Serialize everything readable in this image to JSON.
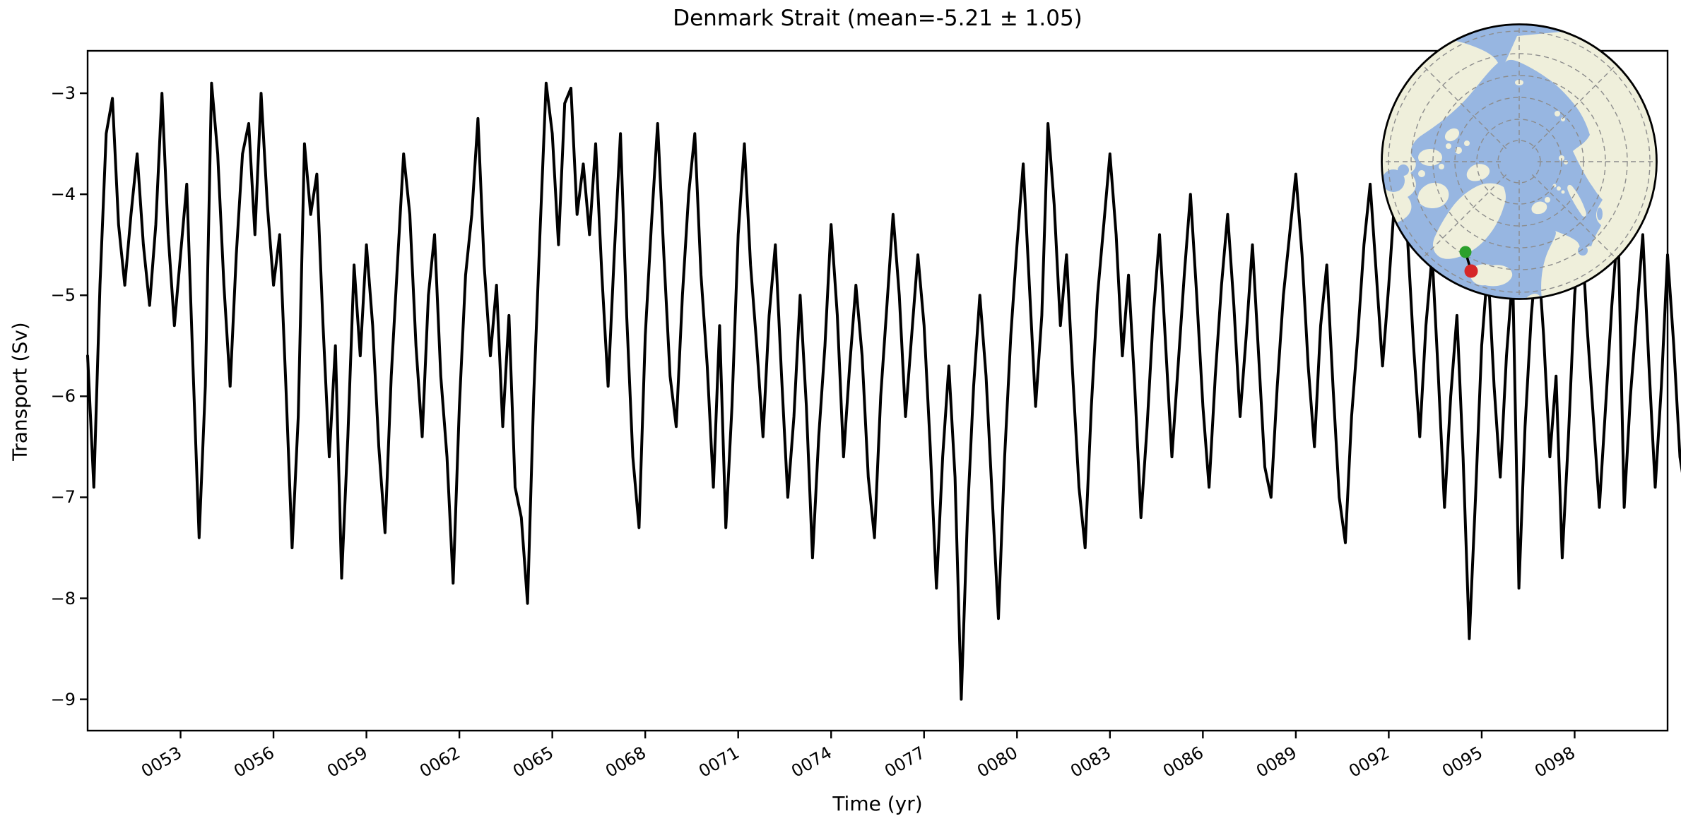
{
  "figure": {
    "title": "Denmark Strait (mean=-5.21 ± 1.05)",
    "xlabel": "Time (yr)",
    "ylabel": "Transport (Sv)"
  },
  "chart_data": {
    "type": "line",
    "title": "Denmark Strait (mean=-5.21 ± 1.05)",
    "xlabel": "Time (yr)",
    "ylabel": "Transport (Sv)",
    "grid": false,
    "legend": "none",
    "xlim": [
      50,
      101
    ],
    "ylim": [
      -9.31,
      -2.58
    ],
    "xticks": {
      "values": [
        53,
        56,
        59,
        62,
        65,
        68,
        71,
        74,
        77,
        80,
        83,
        86,
        89,
        92,
        95,
        98
      ],
      "labels": [
        "0053",
        "0056",
        "0059",
        "0062",
        "0065",
        "0068",
        "0071",
        "0074",
        "0077",
        "0080",
        "0083",
        "0086",
        "0089",
        "0092",
        "0095",
        "0098"
      ]
    },
    "yticks": {
      "values": [
        -3,
        -4,
        -5,
        -6,
        -7,
        -8,
        -9
      ],
      "labels": [
        "−3",
        "−4",
        "−5",
        "−6",
        "−7",
        "−8",
        "−9"
      ]
    },
    "stats": {
      "mean": -5.21,
      "std": 1.05,
      "units": "Sv"
    },
    "series": [
      {
        "name": "Denmark Strait transport",
        "color": "#000000",
        "line_width": 4,
        "x_start": 50.0,
        "x_step": 0.2,
        "values": [
          -5.6,
          -6.9,
          -4.9,
          -3.4,
          -3.05,
          -4.3,
          -4.9,
          -4.2,
          -3.6,
          -4.5,
          -5.1,
          -4.3,
          -3.0,
          -4.4,
          -5.3,
          -4.6,
          -3.9,
          -5.7,
          -7.4,
          -5.9,
          -2.9,
          -3.6,
          -4.9,
          -5.9,
          -4.6,
          -3.6,
          -3.3,
          -4.4,
          -3.0,
          -4.1,
          -4.9,
          -4.4,
          -5.9,
          -7.5,
          -6.2,
          -3.5,
          -4.2,
          -3.8,
          -5.3,
          -6.6,
          -5.5,
          -7.8,
          -6.4,
          -4.7,
          -5.6,
          -4.5,
          -5.3,
          -6.5,
          -7.35,
          -5.8,
          -4.7,
          -3.6,
          -4.2,
          -5.5,
          -6.4,
          -5.0,
          -4.4,
          -5.8,
          -6.6,
          -7.85,
          -6.1,
          -4.8,
          -4.2,
          -3.25,
          -4.7,
          -5.6,
          -4.9,
          -6.3,
          -5.2,
          -6.9,
          -7.2,
          -8.05,
          -6.0,
          -4.4,
          -2.9,
          -3.4,
          -4.5,
          -3.1,
          -2.95,
          -4.2,
          -3.7,
          -4.4,
          -3.5,
          -4.8,
          -5.9,
          -4.6,
          -3.4,
          -5.2,
          -6.6,
          -7.3,
          -5.4,
          -4.3,
          -3.3,
          -4.6,
          -5.8,
          -6.3,
          -5.0,
          -4.0,
          -3.4,
          -4.8,
          -5.7,
          -6.9,
          -5.3,
          -7.3,
          -6.1,
          -4.4,
          -3.5,
          -4.7,
          -5.5,
          -6.4,
          -5.2,
          -4.5,
          -5.8,
          -7.0,
          -6.2,
          -5.0,
          -6.1,
          -7.6,
          -6.4,
          -5.5,
          -4.3,
          -5.2,
          -6.6,
          -5.7,
          -4.9,
          -5.6,
          -6.8,
          -7.4,
          -6.0,
          -5.1,
          -4.2,
          -5.0,
          -6.2,
          -5.4,
          -4.6,
          -5.3,
          -6.5,
          -7.9,
          -6.6,
          -5.7,
          -6.8,
          -9.0,
          -7.2,
          -5.9,
          -5.0,
          -5.8,
          -7.0,
          -8.2,
          -6.6,
          -5.4,
          -4.5,
          -3.7,
          -4.9,
          -6.1,
          -5.2,
          -3.3,
          -4.1,
          -5.3,
          -4.6,
          -5.8,
          -6.9,
          -7.5,
          -6.1,
          -5.0,
          -4.3,
          -3.6,
          -4.4,
          -5.6,
          -4.8,
          -5.9,
          -7.2,
          -6.3,
          -5.2,
          -4.4,
          -5.5,
          -6.6,
          -5.7,
          -4.8,
          -4.0,
          -5.0,
          -6.1,
          -6.9,
          -5.8,
          -4.9,
          -4.2,
          -5.1,
          -6.2,
          -5.4,
          -4.5,
          -5.6,
          -6.7,
          -7.0,
          -5.9,
          -5.0,
          -4.4,
          -3.8,
          -4.6,
          -5.7,
          -6.5,
          -5.3,
          -4.7,
          -5.9,
          -7.0,
          -7.45,
          -6.2,
          -5.4,
          -4.5,
          -3.9,
          -4.8,
          -5.7,
          -4.9,
          -4.0,
          -3.5,
          -4.4,
          -5.5,
          -6.4,
          -5.3,
          -4.6,
          -5.8,
          -7.1,
          -6.0,
          -5.2,
          -6.6,
          -8.4,
          -7.0,
          -5.5,
          -4.7,
          -5.9,
          -6.8,
          -5.6,
          -4.8,
          -7.9,
          -6.3,
          -5.2,
          -4.5,
          -5.4,
          -6.6,
          -5.8,
          -7.6,
          -6.4,
          -5.0,
          -4.2,
          -5.3,
          -6.2,
          -7.1,
          -6.1,
          -5.1,
          -4.3,
          -7.1,
          -6.0,
          -5.2,
          -4.4,
          -5.7,
          -6.9,
          -5.9,
          -4.6,
          -5.5,
          -6.6,
          -7.0,
          -6.3,
          -6.6
        ]
      }
    ]
  },
  "inset_map": {
    "projection": "north-polar-stereographic",
    "ocean_color": "#97b6e1",
    "land_color": "#efefdb",
    "gridline_color": "#8c8c8c",
    "border_color": "#000000",
    "section_line_color": "#000000",
    "markers": [
      {
        "name": "section-start",
        "color": "#2ca02c"
      },
      {
        "name": "section-end",
        "color": "#d62728"
      }
    ]
  }
}
